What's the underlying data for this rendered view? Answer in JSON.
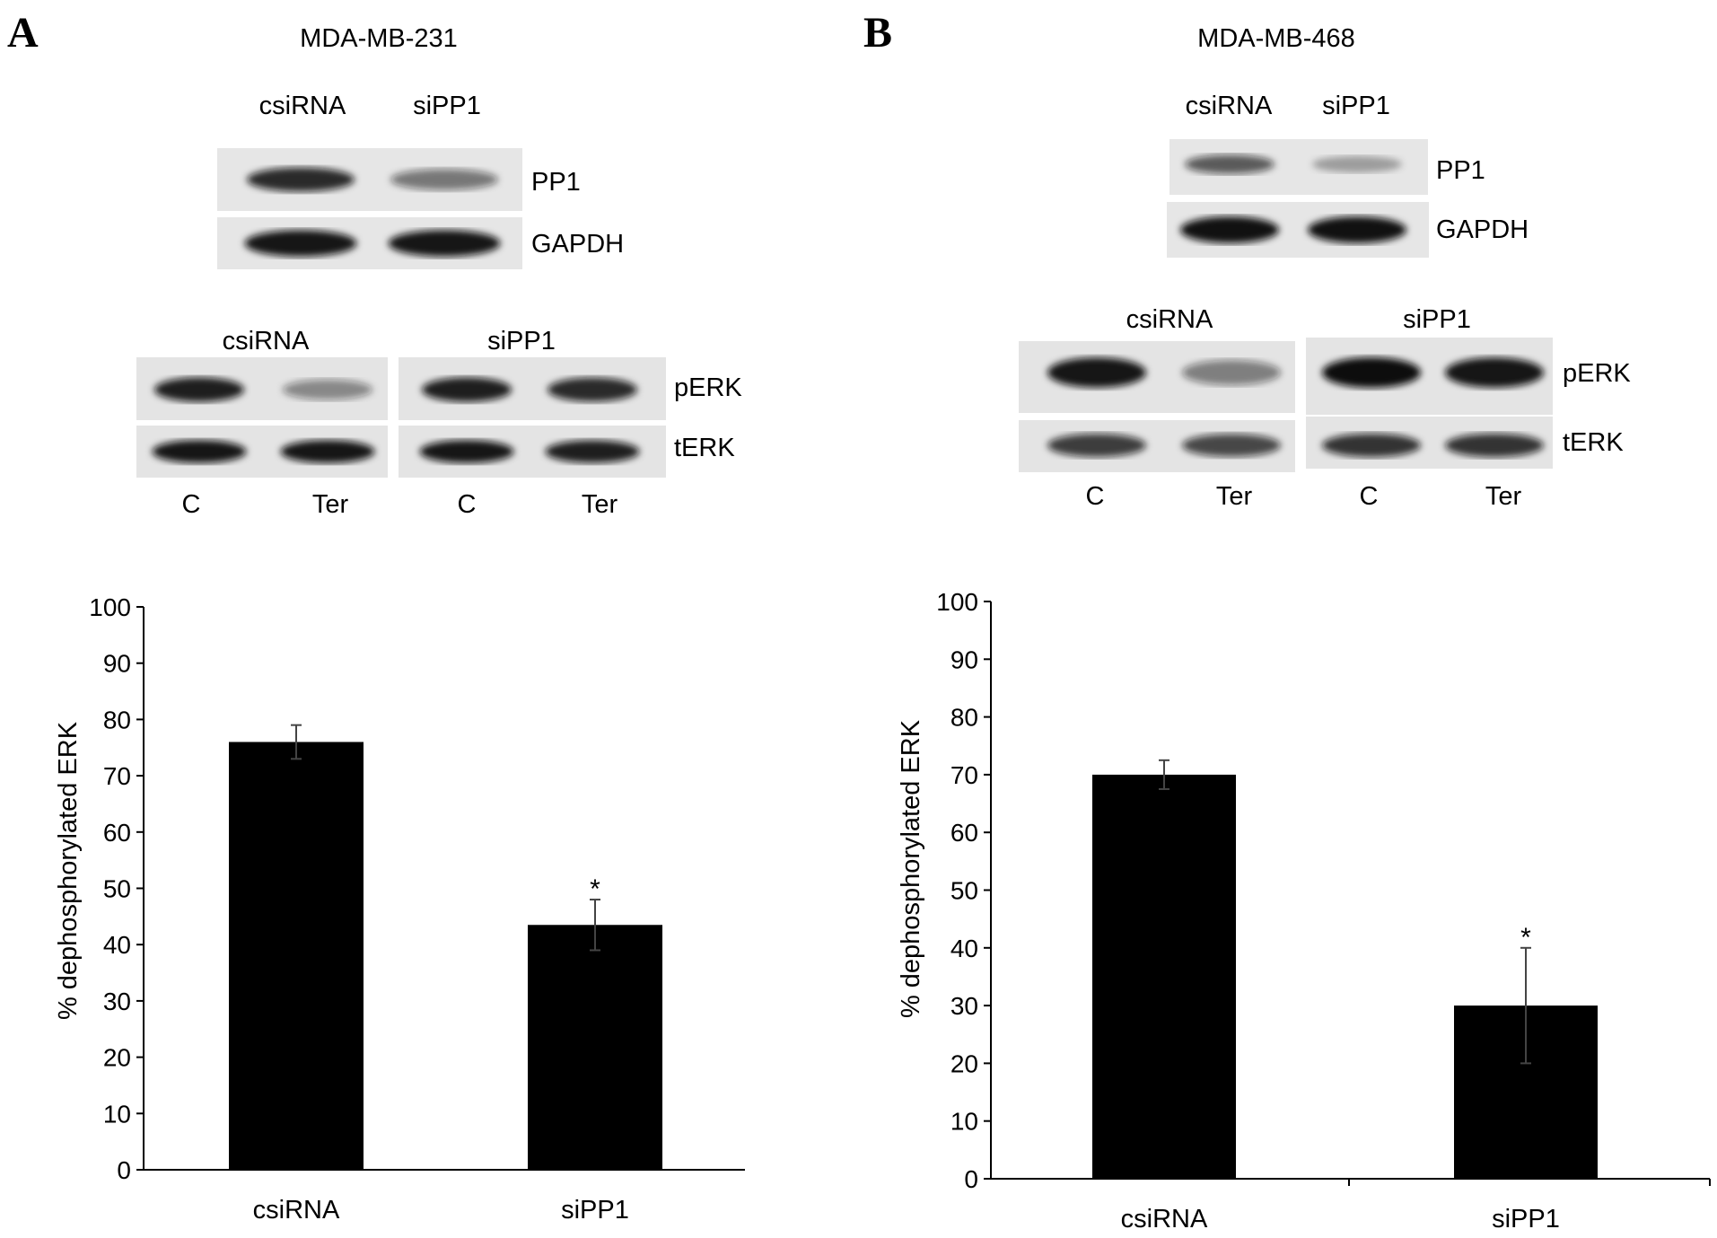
{
  "panels": [
    {
      "letter": "A",
      "cell_line": "MDA-MB-231",
      "blot1": {
        "lane_labels": [
          "csiRNA",
          "siPP1"
        ],
        "rows": [
          {
            "label": "PP1",
            "intensity": [
              0.85,
              0.45
            ]
          },
          {
            "label": "GAPDH",
            "intensity": [
              0.95,
              0.95
            ]
          }
        ]
      },
      "blot2": {
        "group_labels": [
          "csiRNA",
          "siPP1"
        ],
        "lane_labels": [
          "C",
          "Ter",
          "C",
          "Ter"
        ],
        "rows": [
          {
            "label": "pERK",
            "intensity": [
              0.9,
              0.35,
              0.9,
              0.85
            ]
          },
          {
            "label": "tERK",
            "intensity": [
              0.95,
              0.95,
              0.95,
              0.9
            ]
          }
        ]
      }
    },
    {
      "letter": "B",
      "cell_line": "MDA-MB-468",
      "blot1": {
        "lane_labels": [
          "csiRNA",
          "siPP1"
        ],
        "rows": [
          {
            "label": "PP1",
            "intensity": [
              0.6,
              0.2
            ]
          },
          {
            "label": "GAPDH",
            "intensity": [
              0.98,
              0.98
            ]
          }
        ]
      },
      "blot2": {
        "group_labels": [
          "csiRNA",
          "siPP1"
        ],
        "lane_labels": [
          "C",
          "Ter",
          "C",
          "Ter"
        ],
        "rows": [
          {
            "label": "pERK",
            "intensity": [
              0.95,
              0.4,
              1.0,
              0.95
            ]
          },
          {
            "label": "tERK",
            "intensity": [
              0.75,
              0.7,
              0.8,
              0.8
            ]
          }
        ]
      }
    }
  ],
  "chart_data": [
    {
      "type": "bar",
      "categories": [
        "csiRNA",
        "siPP1"
      ],
      "values": [
        76,
        43.5
      ],
      "errors": [
        3,
        4.5
      ],
      "significance": [
        "",
        "*"
      ],
      "ylabel": "% dephosphorylated ERK",
      "ylim": [
        0,
        100
      ],
      "yticks": [
        0,
        10,
        20,
        30,
        40,
        50,
        60,
        70,
        80,
        90,
        100
      ],
      "grid": false,
      "bar_color": "#000000"
    },
    {
      "type": "bar",
      "categories": [
        "csiRNA",
        "siPP1"
      ],
      "values": [
        70,
        30
      ],
      "errors": [
        2.5,
        10
      ],
      "significance": [
        "",
        "*"
      ],
      "ylabel": "% dephosphorylated ERK",
      "ylim": [
        0,
        100
      ],
      "yticks": [
        0,
        10,
        20,
        30,
        40,
        50,
        60,
        70,
        80,
        90,
        100
      ],
      "grid": false,
      "bar_color": "#000000"
    }
  ]
}
